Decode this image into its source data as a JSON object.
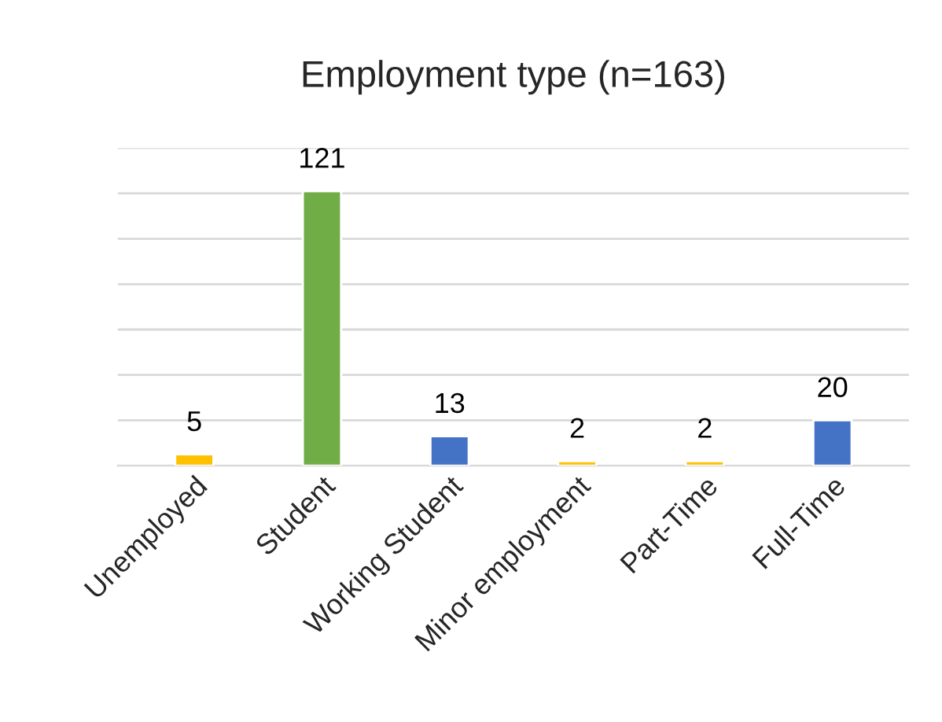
{
  "chart_data": {
    "type": "bar",
    "title": "Employment type (n=163)",
    "categories": [
      "Unemployed",
      "Student",
      "Working Student",
      "Minor employment",
      "Part-Time",
      "Full-Time"
    ],
    "values": [
      5,
      121,
      13,
      2,
      2,
      20
    ],
    "colors": [
      "#ffc000",
      "#70ad47",
      "#4472c4",
      "#ffc000",
      "#ffc000",
      "#4472c4"
    ],
    "ylim": [
      0,
      140
    ],
    "yticks": [
      {
        "value": 0,
        "label": null
      },
      {
        "value": 20,
        "label": null
      },
      {
        "value": 40,
        "label": null
      },
      {
        "value": 60,
        "label": null
      },
      {
        "value": 80,
        "label": null
      },
      {
        "value": 100,
        "label": null
      },
      {
        "value": 120,
        "label": null
      },
      {
        "value": 140,
        "label": null
      }
    ],
    "grid": "y",
    "data_labels": true,
    "legend": false
  }
}
